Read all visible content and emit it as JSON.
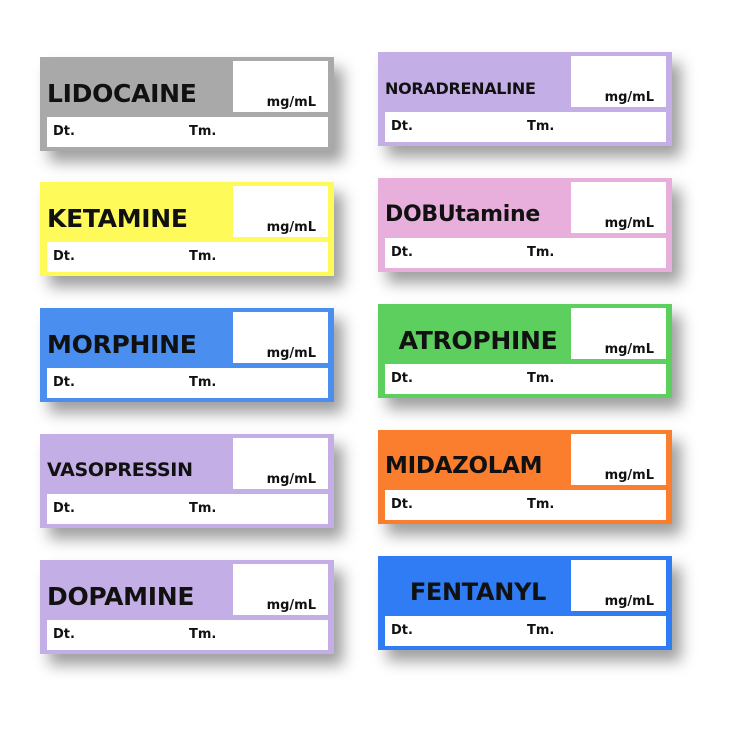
{
  "labels": [
    {
      "name": "LIDOCAINE",
      "unit": "mg/mL",
      "date_label": "Dt.",
      "time_label": "Tm.",
      "color": "#a9a9a9"
    },
    {
      "name": "KETAMINE",
      "unit": "mg/mL",
      "date_label": "Dt.",
      "time_label": "Tm.",
      "color": "#fdfa5a"
    },
    {
      "name": "MORPHINE",
      "unit": "mg/mL",
      "date_label": "Dt.",
      "time_label": "Tm.",
      "color": "#4a8ef0"
    },
    {
      "name": "VASOPRESSIN",
      "unit": "mg/mL",
      "date_label": "Dt.",
      "time_label": "Tm.",
      "color": "#c3aee6"
    },
    {
      "name": "DOPAMINE",
      "unit": "mg/mL",
      "date_label": "Dt.",
      "time_label": "Tm.",
      "color": "#c3aee6"
    },
    {
      "name": "NORADRENALINE",
      "unit": "mg/mL",
      "date_label": "Dt.",
      "time_label": "Tm.",
      "color": "#c3aee6"
    },
    {
      "name": "DOBUtamine",
      "unit": "mg/mL",
      "date_label": "Dt.",
      "time_label": "Tm.",
      "color": "#e8afdc"
    },
    {
      "name": "ATROPHINE",
      "unit": "mg/mL",
      "date_label": "Dt.",
      "time_label": "Tm.",
      "color": "#5ccf5f"
    },
    {
      "name": "MIDAZOLAM",
      "unit": "mg/mL",
      "date_label": "Dt.",
      "time_label": "Tm.",
      "color": "#fb7e2e"
    },
    {
      "name": "FENTANYL",
      "unit": "mg/mL",
      "date_label": "Dt.",
      "time_label": "Tm.",
      "color": "#2f7cf5"
    }
  ]
}
